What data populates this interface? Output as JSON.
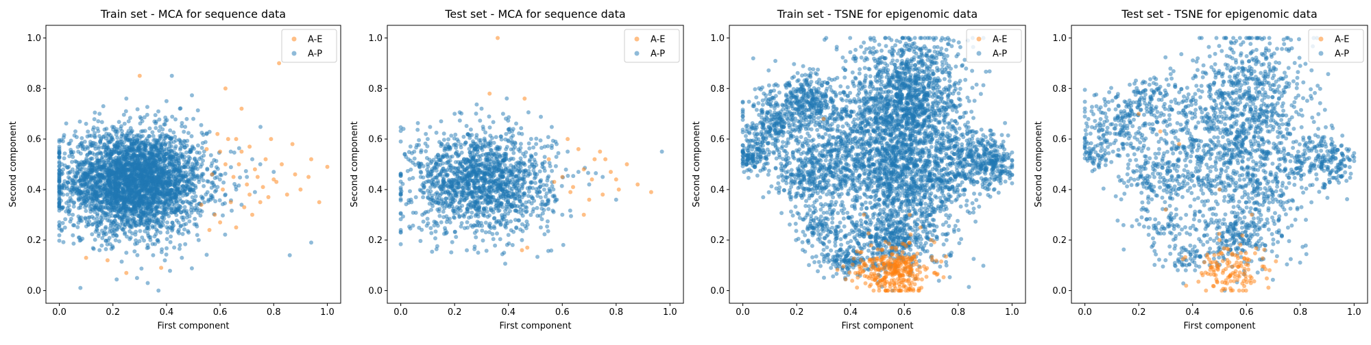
{
  "colors": {
    "A-E": "#ff7f0e",
    "A-P": "#1f77b4"
  },
  "chart_data": [
    {
      "type": "scatter",
      "title": "Train set - MCA for sequence data",
      "xlabel": "First component",
      "ylabel": "Second component",
      "xlim": [
        -0.05,
        1.05
      ],
      "ylim": [
        -0.05,
        1.05
      ],
      "xticks": [
        "0.0",
        "0.2",
        "0.4",
        "0.6",
        "0.8",
        "1.0"
      ],
      "yticks": [
        "0.0",
        "0.2",
        "0.4",
        "0.6",
        "0.8",
        "1.0"
      ],
      "legend_position": "top-right",
      "series": [
        {
          "name": "A-E",
          "color": "#ff7f0e",
          "points": [
            [
              0.3,
              0.85
            ],
            [
              0.82,
              0.9
            ],
            [
              0.62,
              0.8
            ],
            [
              0.68,
              0.72
            ],
            [
              0.79,
              0.6
            ],
            [
              0.87,
              0.58
            ],
            [
              0.94,
              0.52
            ],
            [
              1.0,
              0.49
            ],
            [
              0.93,
              0.45
            ],
            [
              0.9,
              0.4
            ],
            [
              0.85,
              0.38
            ],
            [
              0.75,
              0.35
            ],
            [
              0.72,
              0.3
            ],
            [
              0.66,
              0.25
            ],
            [
              0.6,
              0.27
            ],
            [
              0.56,
              0.24
            ],
            [
              0.58,
              0.3
            ],
            [
              0.62,
              0.5
            ],
            [
              0.65,
              0.45
            ],
            [
              0.7,
              0.42
            ],
            [
              0.73,
              0.48
            ],
            [
              0.77,
              0.52
            ],
            [
              0.8,
              0.44
            ],
            [
              0.68,
              0.55
            ],
            [
              0.63,
              0.6
            ],
            [
              0.55,
              0.56
            ],
            [
              0.59,
              0.62
            ],
            [
              0.71,
              0.38
            ],
            [
              0.76,
              0.41
            ],
            [
              0.83,
              0.5
            ],
            [
              0.88,
              0.46
            ],
            [
              0.97,
              0.35
            ],
            [
              0.64,
              0.35
            ],
            [
              0.69,
              0.33
            ],
            [
              0.1,
              0.13
            ],
            [
              0.18,
              0.12
            ],
            [
              0.25,
              0.07
            ],
            [
              0.38,
              0.09
            ],
            [
              0.53,
              0.34
            ],
            [
              0.57,
              0.46
            ],
            [
              0.61,
              0.4
            ],
            [
              0.67,
              0.5
            ],
            [
              0.74,
              0.45
            ],
            [
              0.78,
              0.37
            ],
            [
              0.81,
              0.43
            ],
            [
              0.71,
              0.57
            ],
            [
              0.66,
              0.6
            ],
            [
              0.6,
              0.55
            ]
          ]
        },
        {
          "name": "A-P",
          "color": "#1f77b4",
          "cloud": {
            "center": [
              0.28,
              0.43
            ],
            "spread": [
              0.13,
              0.1
            ],
            "count": 3400
          },
          "points": [
            [
              0.42,
              0.85
            ],
            [
              0.86,
              0.14
            ],
            [
              0.94,
              0.19
            ],
            [
              0.37,
              0.0
            ],
            [
              0.33,
              0.03
            ],
            [
              0.29,
              0.05
            ],
            [
              0.0,
              0.57
            ],
            [
              0.01,
              0.5
            ],
            [
              0.03,
              0.38
            ],
            [
              0.06,
              0.63
            ],
            [
              0.05,
              0.3
            ],
            [
              0.75,
              0.5
            ],
            [
              0.8,
              0.47
            ],
            [
              0.7,
              0.45
            ],
            [
              0.66,
              0.4
            ],
            [
              0.72,
              0.52
            ],
            [
              0.62,
              0.38
            ],
            [
              0.58,
              0.47
            ],
            [
              0.64,
              0.55
            ],
            [
              0.55,
              0.62
            ],
            [
              0.5,
              0.68
            ],
            [
              0.45,
              0.72
            ],
            [
              0.4,
              0.75
            ],
            [
              0.25,
              0.76
            ],
            [
              0.15,
              0.7
            ],
            [
              0.1,
              0.66
            ],
            [
              0.08,
              0.2
            ],
            [
              0.15,
              0.16
            ],
            [
              0.2,
              0.17
            ],
            [
              0.35,
              0.14
            ],
            [
              0.45,
              0.18
            ],
            [
              0.52,
              0.2
            ],
            [
              0.68,
              0.34
            ],
            [
              0.73,
              0.39
            ]
          ]
        }
      ]
    },
    {
      "type": "scatter",
      "title": "Test set - MCA for sequence data",
      "xlabel": "First component",
      "ylabel": "Second component",
      "xlim": [
        -0.05,
        1.05
      ],
      "ylim": [
        -0.05,
        1.05
      ],
      "xticks": [
        "0.0",
        "0.2",
        "0.4",
        "0.6",
        "0.8",
        "1.0"
      ],
      "yticks": [
        "0.0",
        "0.2",
        "0.4",
        "0.6",
        "0.8",
        "1.0"
      ],
      "legend_position": "top-right",
      "series": [
        {
          "name": "A-E",
          "color": "#ff7f0e",
          "points": [
            [
              0.36,
              1.0
            ],
            [
              0.46,
              0.76
            ],
            [
              0.33,
              0.78
            ],
            [
              0.84,
              0.5
            ],
            [
              0.93,
              0.39
            ],
            [
              0.88,
              0.42
            ],
            [
              0.8,
              0.44
            ],
            [
              0.75,
              0.38
            ],
            [
              0.7,
              0.36
            ],
            [
              0.68,
              0.48
            ],
            [
              0.72,
              0.52
            ],
            [
              0.66,
              0.56
            ],
            [
              0.62,
              0.6
            ],
            [
              0.6,
              0.45
            ],
            [
              0.64,
              0.41
            ],
            [
              0.78,
              0.47
            ],
            [
              0.81,
              0.4
            ],
            [
              0.57,
              0.43
            ],
            [
              0.55,
              0.52
            ],
            [
              0.74,
              0.55
            ],
            [
              0.47,
              0.17
            ],
            [
              0.45,
              0.16
            ],
            [
              0.68,
              0.3
            ],
            [
              0.71,
              0.44
            ],
            [
              0.76,
              0.52
            ],
            [
              0.63,
              0.39
            ]
          ]
        },
        {
          "name": "A-P",
          "color": "#1f77b4",
          "cloud": {
            "center": [
              0.3,
              0.43
            ],
            "spread": [
              0.13,
              0.1
            ],
            "count": 1500
          },
          "points": [
            [
              0.01,
              0.64
            ],
            [
              0.0,
              0.24
            ],
            [
              0.97,
              0.55
            ],
            [
              0.62,
              0.55
            ],
            [
              0.7,
              0.42
            ],
            [
              0.66,
              0.47
            ],
            [
              0.58,
              0.36
            ],
            [
              0.52,
              0.25
            ],
            [
              0.45,
              0.2
            ],
            [
              0.4,
              0.22
            ],
            [
              0.2,
              0.7
            ],
            [
              0.15,
              0.67
            ],
            [
              0.1,
              0.6
            ],
            [
              0.05,
              0.55
            ],
            [
              0.04,
              0.35
            ],
            [
              0.08,
              0.3
            ],
            [
              0.3,
              0.72
            ],
            [
              0.38,
              0.7
            ],
            [
              0.45,
              0.62
            ],
            [
              0.6,
              0.3
            ],
            [
              0.75,
              0.45
            ],
            [
              0.8,
              0.36
            ]
          ]
        }
      ]
    },
    {
      "type": "scatter",
      "title": "Train set - TSNE for epigenomic data",
      "xlabel": "First component",
      "ylabel": "Second component",
      "xlim": [
        -0.05,
        1.05
      ],
      "ylim": [
        -0.05,
        1.05
      ],
      "xticks": [
        "0.0",
        "0.2",
        "0.4",
        "0.6",
        "0.8",
        "1.0"
      ],
      "yticks": [
        "0.0",
        "0.2",
        "0.4",
        "0.6",
        "0.8",
        "1.0"
      ],
      "legend_position": "top-right",
      "series": [
        {
          "name": "A-E",
          "color": "#ff7f0e",
          "cluster": {
            "center": [
              0.56,
              0.08
            ],
            "spread": [
              0.07,
              0.05
            ],
            "count": 320
          },
          "points": [
            [
              0.3,
              0.68
            ],
            [
              0.45,
              0.3
            ],
            [
              0.62,
              0.3
            ],
            [
              0.66,
              0.25
            ],
            [
              0.7,
              0.2
            ]
          ]
        },
        {
          "name": "A-P",
          "color": "#1f77b4",
          "blobs": [
            {
              "center": [
                0.62,
                0.78
              ],
              "spread": [
                0.1,
                0.12
              ],
              "count": 1100
            },
            {
              "center": [
                0.45,
                0.55
              ],
              "spread": [
                0.12,
                0.14
              ],
              "count": 1000
            },
            {
              "center": [
                0.65,
                0.45
              ],
              "spread": [
                0.1,
                0.14
              ],
              "count": 900
            },
            {
              "center": [
                0.12,
                0.65
              ],
              "spread": [
                0.07,
                0.07
              ],
              "count": 350
            },
            {
              "center": [
                0.25,
                0.75
              ],
              "spread": [
                0.06,
                0.05
              ],
              "count": 250
            },
            {
              "center": [
                0.85,
                0.52
              ],
              "spread": [
                0.06,
                0.06
              ],
              "count": 300
            },
            {
              "center": [
                0.95,
                0.5
              ],
              "spread": [
                0.03,
                0.05
              ],
              "count": 120
            },
            {
              "center": [
                0.03,
                0.53
              ],
              "spread": [
                0.03,
                0.03
              ],
              "count": 100
            },
            {
              "center": [
                0.25,
                0.45
              ],
              "spread": [
                0.07,
                0.06
              ],
              "count": 280
            },
            {
              "center": [
                0.55,
                0.2
              ],
              "spread": [
                0.08,
                0.06
              ],
              "count": 350
            },
            {
              "center": [
                0.38,
                0.12
              ],
              "spread": [
                0.05,
                0.03
              ],
              "count": 120
            },
            {
              "center": [
                0.3,
                0.25
              ],
              "spread": [
                0.05,
                0.04
              ],
              "count": 120
            }
          ],
          "points": []
        }
      ]
    },
    {
      "type": "scatter",
      "title": "Test set - TSNE for epigenomic data",
      "xlabel": "First component",
      "ylabel": "Second component",
      "xlim": [
        -0.05,
        1.05
      ],
      "ylim": [
        -0.05,
        1.05
      ],
      "xticks": [
        "0.0",
        "0.2",
        "0.4",
        "0.6",
        "0.8",
        "1.0"
      ],
      "yticks": [
        "0.0",
        "0.2",
        "0.4",
        "0.6",
        "0.8",
        "1.0"
      ],
      "legend_position": "top-right",
      "series": [
        {
          "name": "A-E",
          "color": "#ff7f0e",
          "cluster": {
            "center": [
              0.55,
              0.08
            ],
            "spread": [
              0.07,
              0.05
            ],
            "count": 130
          },
          "points": [
            [
              0.2,
              0.7
            ],
            [
              0.28,
              0.63
            ],
            [
              0.35,
              0.58
            ],
            [
              0.5,
              0.4
            ],
            [
              0.62,
              0.3
            ],
            [
              0.3,
              0.32
            ],
            [
              0.5,
              0.2
            ]
          ]
        },
        {
          "name": "A-P",
          "color": "#1f77b4",
          "blobs": [
            {
              "center": [
                0.62,
                0.78
              ],
              "spread": [
                0.1,
                0.12
              ],
              "count": 520
            },
            {
              "center": [
                0.45,
                0.55
              ],
              "spread": [
                0.12,
                0.14
              ],
              "count": 480
            },
            {
              "center": [
                0.65,
                0.45
              ],
              "spread": [
                0.1,
                0.14
              ],
              "count": 420
            },
            {
              "center": [
                0.12,
                0.65
              ],
              "spread": [
                0.07,
                0.07
              ],
              "count": 170
            },
            {
              "center": [
                0.25,
                0.75
              ],
              "spread": [
                0.06,
                0.05
              ],
              "count": 120
            },
            {
              "center": [
                0.85,
                0.52
              ],
              "spread": [
                0.06,
                0.06
              ],
              "count": 150
            },
            {
              "center": [
                0.95,
                0.5
              ],
              "spread": [
                0.03,
                0.05
              ],
              "count": 60
            },
            {
              "center": [
                0.03,
                0.53
              ],
              "spread": [
                0.03,
                0.03
              ],
              "count": 50
            },
            {
              "center": [
                0.25,
                0.45
              ],
              "spread": [
                0.07,
                0.06
              ],
              "count": 140
            },
            {
              "center": [
                0.55,
                0.2
              ],
              "spread": [
                0.08,
                0.06
              ],
              "count": 170
            },
            {
              "center": [
                0.38,
                0.12
              ],
              "spread": [
                0.05,
                0.03
              ],
              "count": 60
            },
            {
              "center": [
                0.3,
                0.25
              ],
              "spread": [
                0.05,
                0.04
              ],
              "count": 60
            }
          ],
          "points": []
        }
      ]
    }
  ]
}
